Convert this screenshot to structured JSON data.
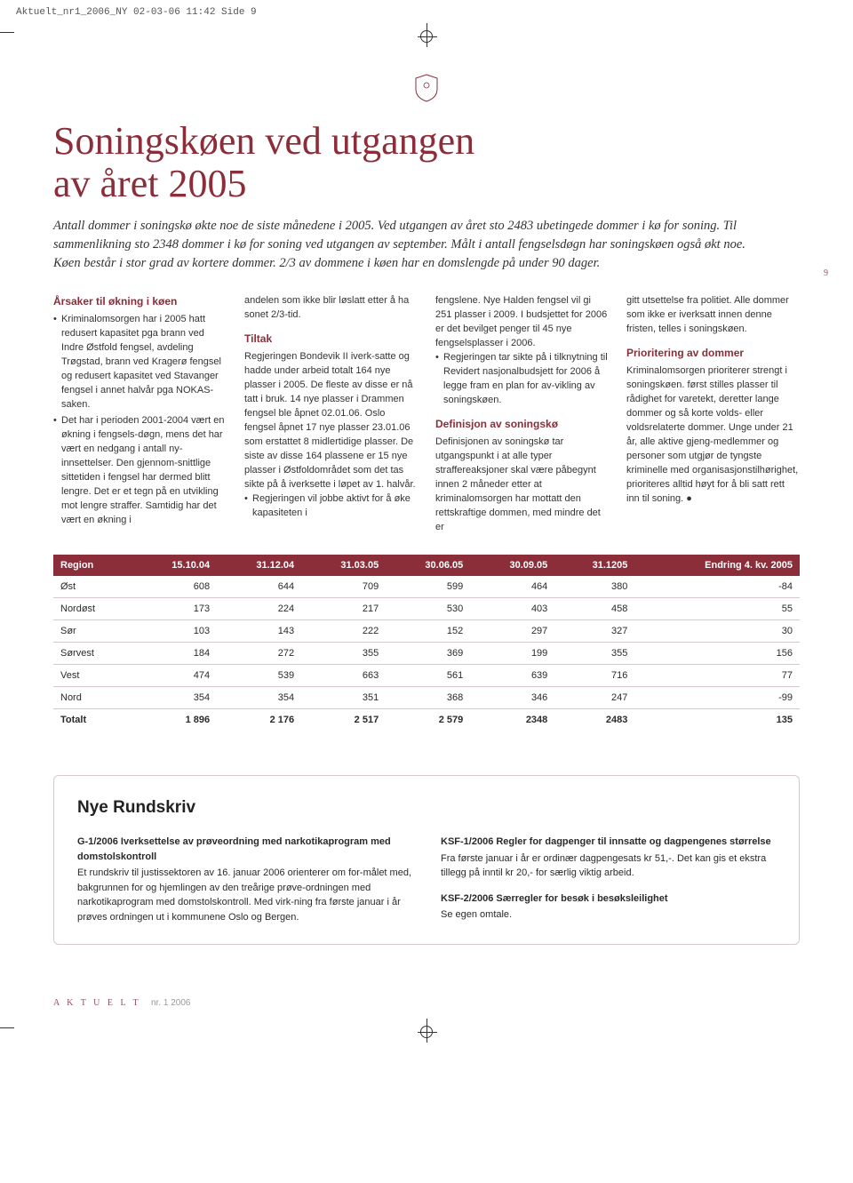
{
  "print_header": "Aktuelt_nr1_2006_NY  02-03-06  11:42  Side 9",
  "title_line1": "Soningskøen ved utgangen",
  "title_line2": "av året 2005",
  "lead": "Antall dommer i soningskø økte noe de siste månedene i 2005. Ved utgangen av året sto 2483 ubetingede dommer i kø for soning. Til sammenlikning sto 2348 dommer i kø for soning ved utgangen av september. Målt i antall fengselsdøgn har soningskøen også økt noe. Køen består i stor grad av kortere dommer. 2/3 av dommene i køen har en domslengde på under 90 dager.",
  "side_page_num": "9",
  "col1": {
    "heading": "Årsaker til økning i køen",
    "bullet1": "Kriminalomsorgen har i 2005 hatt redusert kapasitet pga brann ved Indre Østfold fengsel, avdeling Trøgstad, brann ved Kragerø fengsel og redusert kapasitet ved Stavanger fengsel i annet halvår pga NOKAS-saken.",
    "bullet2": "Det har i perioden 2001-2004 vært en økning i fengsels-døgn, mens det har vært en nedgang i antall ny-innsettelser. Den gjennom-snittlige sittetiden i fengsel har dermed blitt lengre. Det er et tegn på en utvikling mot lengre straffer. Samtidig har det vært en økning i"
  },
  "col2": {
    "pre": "andelen som ikke blir løslatt etter å ha sonet 2/3-tid.",
    "heading": "Tiltak",
    "body": "Regjeringen Bondevik II iverk-satte og hadde under arbeid totalt 164 nye plasser i 2005. De fleste av disse er nå tatt i bruk. 14 nye plasser i Drammen fengsel ble åpnet 02.01.06. Oslo fengsel åpnet 17 nye plasser 23.01.06 som erstattet 8 midlertidige plasser. De siste av disse 164 plassene er 15 nye plasser i Østfoldområdet som det tas sikte på å iverksette i løpet av 1. halvår.",
    "bullet1": "Regjeringen vil jobbe aktivt for å øke kapasiteten i"
  },
  "col3": {
    "pre": "fengslene. Nye Halden fengsel vil gi 251 plasser i 2009. I budsjettet for 2006 er det bevilget penger til 45 nye fengselsplasser i 2006.",
    "bullet1": "Regjeringen tar sikte på i tilknytning til Revidert nasjonalbudsjett for 2006 å legge fram en plan for av-vikling av soningskøen.",
    "heading": "Definisjon av soningskø",
    "body": "Definisjonen av soningskø tar utgangspunkt i at alle typer straffereaksjoner skal være påbegynt innen 2 måneder etter at kriminalomsorgen har mottatt den rettskraftige dommen, med mindre det er"
  },
  "col4": {
    "pre": "gitt utsettelse fra politiet. Alle dommer som ikke er iverksatt innen denne fristen, telles i soningskøen.",
    "heading": "Prioritering av dommer",
    "body": "Kriminalomsorgen prioriterer strengt i soningskøen. først stilles plasser til rådighet for varetekt, deretter lange dommer og så korte volds- eller voldsrelaterte dommer. Unge under 21 år, alle aktive gjeng-medlemmer og personer som utgjør de tyngste kriminelle med organisasjonstilhørighet, prioriteres alltid høyt for å bli satt rett inn til soning. ●"
  },
  "table": {
    "header_bg": "#8b2e3a",
    "header_fg": "#ffffff",
    "row_border": "#d8c8cc",
    "columns": [
      "Region",
      "15.10.04",
      "31.12.04",
      "31.03.05",
      "30.06.05",
      "30.09.05",
      "31.1205",
      "Endring 4. kv. 2005"
    ],
    "rows": [
      [
        "Øst",
        "608",
        "644",
        "709",
        "599",
        "464",
        "380",
        "-84"
      ],
      [
        "Nordøst",
        "173",
        "224",
        "217",
        "530",
        "403",
        "458",
        "55"
      ],
      [
        "Sør",
        "103",
        "143",
        "222",
        "152",
        "297",
        "327",
        "30"
      ],
      [
        "Sørvest",
        "184",
        "272",
        "355",
        "369",
        "199",
        "355",
        "156"
      ],
      [
        "Vest",
        "474",
        "539",
        "663",
        "561",
        "639",
        "716",
        "77"
      ],
      [
        "Nord",
        "354",
        "354",
        "351",
        "368",
        "346",
        "247",
        "-99"
      ]
    ],
    "total_row": [
      "Totalt",
      "1 896",
      "2 176",
      "2 517",
      "2 579",
      "2348",
      "2483",
      "135"
    ]
  },
  "rundskriv": {
    "title": "Nye Rundskriv",
    "left_sub1": "G-1/2006 Iverksettelse av prøveordning med narkotikaprogram med domstolskontroll",
    "left_body1": "Et rundskriv til justissektoren av 16. januar 2006 orienterer om for-målet med, bakgrunnen for og hjemlingen av den treårige prøve-ordningen med narkotikaprogram med domstolskontroll. Med virk-ning fra første januar i år prøves ordningen ut i kommunene Oslo og Bergen.",
    "right_sub1": "KSF-1/2006 Regler for dagpenger til innsatte og dagpengenes størrelse",
    "right_body1": "Fra første januar i år er ordinær dagpengesats kr 51,-. Det kan gis et ekstra tillegg på inntil kr 20,- for særlig viktig arbeid.",
    "right_sub2": "KSF-2/2006 Særregler for besøk i besøksleilighet",
    "right_body2": "Se egen omtale."
  },
  "footer": {
    "brand": "A K T U E L T",
    "issue": "nr. 1 2006"
  },
  "colors": {
    "accent": "#8b2e3a",
    "text": "#2a2a2a",
    "border": "#d8c8cc"
  }
}
